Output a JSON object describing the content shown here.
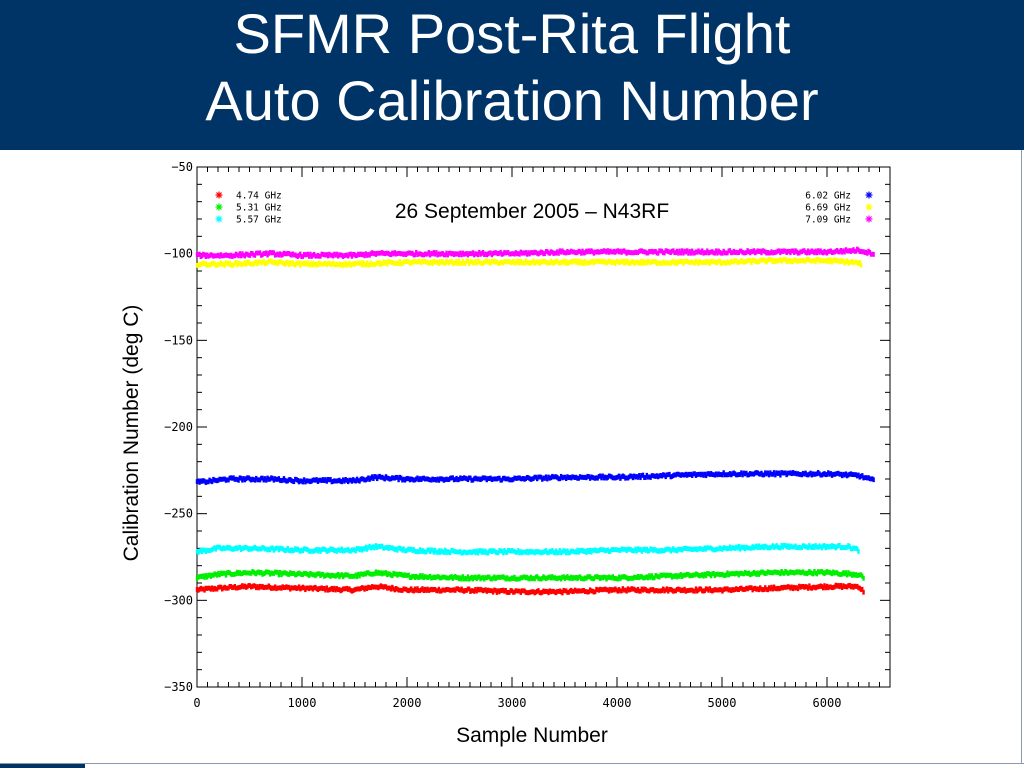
{
  "title": {
    "line1": "SFMR Post-Rita Flight",
    "line2": "Auto Calibration Number"
  },
  "colors": {
    "header_bg": "#003366",
    "title_text": "#ffffff"
  },
  "chart_data": {
    "type": "scatter",
    "annotation": "26 September 2005 – N43RF",
    "xlabel": "Sample Number",
    "ylabel": "Calibration Number (deg C)",
    "xlim": [
      0,
      6600
    ],
    "ylim": [
      -350,
      -50
    ],
    "xticks": [
      0,
      1000,
      2000,
      3000,
      4000,
      5000,
      6000
    ],
    "yticks": [
      -50,
      -100,
      -150,
      -200,
      -250,
      -300,
      -350
    ],
    "xtick_labels": [
      "0",
      "1000",
      "2000",
      "3000",
      "4000",
      "5000",
      "6000"
    ],
    "ytick_labels": [
      "−50",
      "−100",
      "−150",
      "−200",
      "−250",
      "−300",
      "−350"
    ],
    "grid": false,
    "legend_left": [
      "4.74 GHz",
      "5.31 GHz",
      "5.57 GHz"
    ],
    "legend_right": [
      "6.02 GHz",
      "6.69 GHz",
      "7.09 GHz"
    ],
    "series": [
      {
        "name": "4.74 GHz",
        "color": "#ff0000",
        "x": [
          0,
          200,
          500,
          1000,
          1500,
          1700,
          2000,
          2500,
          3000,
          3500,
          4000,
          4500,
          5000,
          5500,
          6000,
          6300,
          6350
        ],
        "y": [
          -294,
          -293,
          -292,
          -293,
          -294,
          -292,
          -294,
          -294,
          -295,
          -295,
          -294,
          -294,
          -294,
          -293,
          -292,
          -292,
          -295
        ]
      },
      {
        "name": "5.31 GHz",
        "color": "#00ee00",
        "x": [
          0,
          200,
          500,
          1000,
          1500,
          1700,
          2000,
          2500,
          3000,
          3500,
          4000,
          4500,
          5000,
          5500,
          6000,
          6300,
          6350
        ],
        "y": [
          -287,
          -285,
          -284,
          -285,
          -286,
          -284,
          -286,
          -287,
          -287,
          -287,
          -287,
          -286,
          -285,
          -284,
          -284,
          -285,
          -287
        ]
      },
      {
        "name": "5.57 GHz",
        "color": "#00ffff",
        "x": [
          0,
          200,
          500,
          1000,
          1500,
          1700,
          2000,
          2500,
          3000,
          3500,
          4000,
          4500,
          5000,
          5500,
          6000,
          6200,
          6300
        ],
        "y": [
          -272,
          -270,
          -270,
          -271,
          -271,
          -269,
          -271,
          -272,
          -272,
          -272,
          -271,
          -271,
          -270,
          -269,
          -269,
          -269,
          -271
        ]
      },
      {
        "name": "6.02 GHz",
        "color": "#0000ff",
        "x": [
          0,
          300,
          700,
          1000,
          1500,
          1700,
          2000,
          2500,
          3000,
          3500,
          4000,
          4500,
          5000,
          5500,
          6000,
          6300,
          6450
        ],
        "y": [
          -232,
          -230,
          -230,
          -231,
          -231,
          -229,
          -230,
          -230,
          -230,
          -229,
          -229,
          -228,
          -227,
          -227,
          -227,
          -228,
          -231
        ]
      },
      {
        "name": "6.69 GHz",
        "color": "#ffff00",
        "x": [
          0,
          300,
          700,
          1000,
          1500,
          2000,
          2500,
          3000,
          3500,
          4000,
          4500,
          5000,
          5500,
          6000,
          6250,
          6330
        ],
        "y": [
          -106,
          -106,
          -105,
          -106,
          -106,
          -105,
          -105,
          -105,
          -105,
          -105,
          -105,
          -105,
          -104,
          -104,
          -105,
          -106
        ]
      },
      {
        "name": "7.09 GHz",
        "color": "#ff00ff",
        "x": [
          0,
          300,
          700,
          1000,
          1500,
          1700,
          2000,
          2500,
          3000,
          3500,
          4000,
          4500,
          5000,
          5500,
          6000,
          6300,
          6450
        ],
        "y": [
          -101,
          -101,
          -100,
          -101,
          -101,
          -100,
          -100,
          -100,
          -100,
          -99,
          -99,
          -99,
          -99,
          -99,
          -99,
          -98,
          -100
        ]
      }
    ]
  }
}
